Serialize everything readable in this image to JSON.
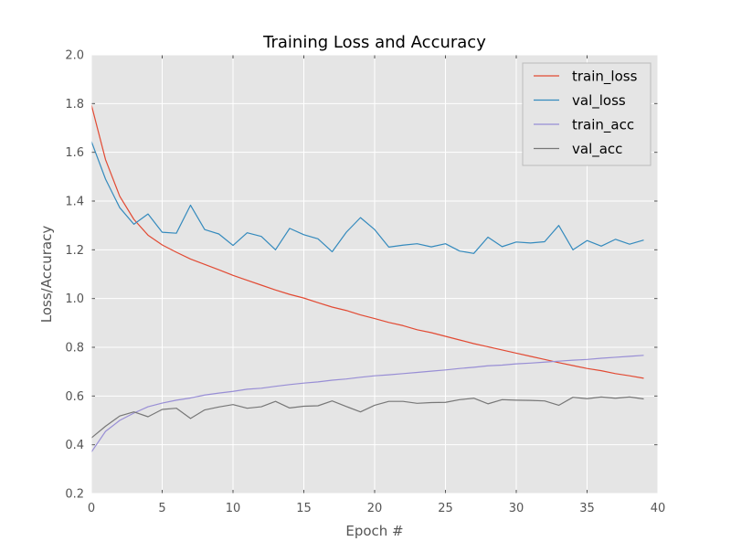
{
  "chart_data": {
    "type": "line",
    "title": "Training Loss and Accuracy",
    "xlabel": "Epoch #",
    "ylabel": "Loss/Accuracy",
    "xlim": [
      0,
      40
    ],
    "ylim": [
      0.2,
      2.0
    ],
    "x_ticks": [
      "0",
      "5",
      "10",
      "15",
      "20",
      "25",
      "30",
      "35",
      "40"
    ],
    "y_ticks": [
      "0.2",
      "0.4",
      "0.6",
      "0.8",
      "1.0",
      "1.2",
      "1.4",
      "1.6",
      "1.8",
      "2.0"
    ],
    "grid": true,
    "legend_position": "top-right",
    "background_color": "#e5e5e5",
    "x": [
      0,
      1,
      2,
      3,
      4,
      5,
      6,
      7,
      8,
      9,
      10,
      11,
      12,
      13,
      14,
      15,
      16,
      17,
      18,
      19,
      20,
      21,
      22,
      23,
      24,
      25,
      26,
      27,
      28,
      29,
      30,
      31,
      32,
      33,
      34,
      35,
      36,
      37,
      38,
      39
    ],
    "series": [
      {
        "name": "train_loss",
        "color": "#e24a33",
        "values": [
          1.795,
          1.57,
          1.42,
          1.325,
          1.26,
          1.22,
          1.19,
          1.162,
          1.14,
          1.118,
          1.095,
          1.075,
          1.055,
          1.035,
          1.017,
          1.002,
          0.983,
          0.965,
          0.951,
          0.933,
          0.918,
          0.902,
          0.889,
          0.872,
          0.86,
          0.845,
          0.83,
          0.815,
          0.802,
          0.789,
          0.776,
          0.763,
          0.75,
          0.737,
          0.725,
          0.713,
          0.704,
          0.692,
          0.683,
          0.673
        ]
      },
      {
        "name": "val_loss",
        "color": "#348abd",
        "values": [
          1.645,
          1.49,
          1.373,
          1.305,
          1.347,
          1.272,
          1.268,
          1.383,
          1.283,
          1.265,
          1.218,
          1.27,
          1.255,
          1.2,
          1.288,
          1.262,
          1.245,
          1.192,
          1.272,
          1.332,
          1.283,
          1.211,
          1.219,
          1.225,
          1.212,
          1.225,
          1.195,
          1.185,
          1.252,
          1.213,
          1.232,
          1.228,
          1.233,
          1.3,
          1.2,
          1.238,
          1.215,
          1.243,
          1.223,
          1.24
        ]
      },
      {
        "name": "train_acc",
        "color": "#988ed5",
        "values": [
          0.37,
          0.455,
          0.5,
          0.53,
          0.556,
          0.571,
          0.583,
          0.592,
          0.604,
          0.612,
          0.619,
          0.628,
          0.632,
          0.64,
          0.647,
          0.653,
          0.658,
          0.665,
          0.67,
          0.677,
          0.683,
          0.687,
          0.692,
          0.697,
          0.702,
          0.707,
          0.713,
          0.718,
          0.724,
          0.727,
          0.732,
          0.735,
          0.739,
          0.743,
          0.747,
          0.75,
          0.755,
          0.759,
          0.763,
          0.767
        ]
      },
      {
        "name": "val_acc",
        "color": "#777777",
        "values": [
          0.428,
          0.476,
          0.518,
          0.535,
          0.515,
          0.545,
          0.55,
          0.508,
          0.543,
          0.555,
          0.565,
          0.55,
          0.556,
          0.578,
          0.551,
          0.558,
          0.56,
          0.58,
          0.557,
          0.535,
          0.562,
          0.578,
          0.578,
          0.57,
          0.573,
          0.574,
          0.585,
          0.591,
          0.568,
          0.585,
          0.583,
          0.582,
          0.58,
          0.562,
          0.595,
          0.589,
          0.596,
          0.591,
          0.596,
          0.588
        ]
      }
    ]
  }
}
